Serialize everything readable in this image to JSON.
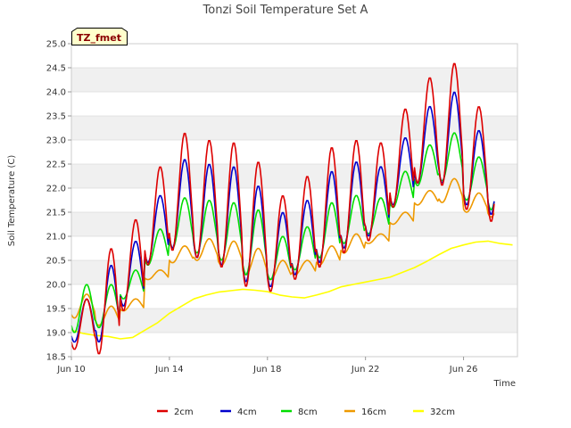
{
  "chart_data": {
    "type": "line",
    "title": "Tonzi Soil Temperature Set A",
    "xlabel": "Time",
    "ylabel": "Soil Temperature (C)",
    "tag_label": "TZ_fmet",
    "ylim": [
      18.5,
      25.0
    ],
    "yticks": [
      18.5,
      19.0,
      19.5,
      20.0,
      20.5,
      21.0,
      21.5,
      22.0,
      22.5,
      23.0,
      23.5,
      24.0,
      24.5,
      25.0
    ],
    "ytick_labels": [
      "18.5",
      "19.0",
      "19.5",
      "20.0",
      "20.5",
      "21.0",
      "21.5",
      "22.0",
      "22.5",
      "23.0",
      "23.5",
      "24.0",
      "24.5",
      "25.0"
    ],
    "xlim": [
      10,
      28.2
    ],
    "xticks": [
      10,
      14,
      18,
      22,
      26
    ],
    "xtick_labels": [
      "Jun 10",
      "Jun 14",
      "Jun 18",
      "Jun 22",
      "Jun 26"
    ],
    "grid": "horizontal bands",
    "legend_position": "bottom",
    "days": [
      "Jun 10",
      "Jun 11",
      "Jun 12",
      "Jun 13",
      "Jun 14",
      "Jun 15",
      "Jun 16",
      "Jun 17",
      "Jun 18",
      "Jun 19",
      "Jun 20",
      "Jun 21",
      "Jun 22",
      "Jun 23",
      "Jun 24",
      "Jun 25",
      "Jun 26",
      "Jun 27"
    ],
    "series": [
      {
        "name": "2cm",
        "color": "#dd0000",
        "kind": "daily",
        "daily_max": [
          19.7,
          20.75,
          21.35,
          22.45,
          23.15,
          23.0,
          22.95,
          22.55,
          21.85,
          22.25,
          22.85,
          23.0,
          22.95,
          23.65,
          24.3,
          24.6,
          23.7,
          23.85
        ],
        "daily_min": [
          18.65,
          18.55,
          19.45,
          20.4,
          20.7,
          20.55,
          20.35,
          19.95,
          19.85,
          20.1,
          20.35,
          20.65,
          20.9,
          21.6,
          22.1,
          22.05,
          21.55,
          21.3
        ]
      },
      {
        "name": "4cm",
        "color": "#0000cc",
        "kind": "daily",
        "daily_max": [
          19.7,
          20.4,
          20.9,
          21.85,
          22.6,
          22.5,
          22.45,
          22.05,
          21.5,
          21.75,
          22.35,
          22.55,
          22.45,
          23.05,
          23.7,
          24.0,
          23.2,
          23.35
        ],
        "daily_min": [
          18.8,
          18.8,
          19.55,
          20.45,
          20.75,
          20.55,
          20.4,
          20.05,
          19.95,
          20.2,
          20.45,
          20.75,
          21.0,
          21.65,
          22.1,
          22.1,
          21.65,
          21.45
        ]
      },
      {
        "name": "8cm",
        "color": "#00dd00",
        "kind": "daily",
        "daily_max": [
          20.0,
          20.0,
          20.3,
          21.15,
          21.8,
          21.75,
          21.7,
          21.55,
          21.0,
          21.2,
          21.7,
          21.85,
          21.8,
          22.35,
          22.9,
          23.15,
          22.65,
          22.7
        ],
        "daily_min": [
          19.0,
          19.1,
          19.7,
          20.4,
          20.75,
          20.65,
          20.5,
          20.2,
          20.1,
          20.3,
          20.55,
          20.85,
          21.05,
          21.6,
          22.05,
          22.15,
          21.75,
          21.55
        ]
      },
      {
        "name": "16cm",
        "color": "#ee9900",
        "kind": "daily",
        "daily_max": [
          19.8,
          19.55,
          19.7,
          20.3,
          20.8,
          20.95,
          20.9,
          20.75,
          20.5,
          20.5,
          20.8,
          21.05,
          21.05,
          21.5,
          21.95,
          22.2,
          21.9,
          21.9
        ],
        "daily_min": [
          19.3,
          19.15,
          19.45,
          20.1,
          20.45,
          20.5,
          20.4,
          20.2,
          20.1,
          20.2,
          20.4,
          20.65,
          20.85,
          21.25,
          21.65,
          21.7,
          21.5,
          21.4
        ]
      },
      {
        "name": "32cm",
        "color": "#ffff00",
        "kind": "smooth",
        "x": [
          10.0,
          10.5,
          11.0,
          11.5,
          12.0,
          12.5,
          13.0,
          13.5,
          14.0,
          14.5,
          15.0,
          15.5,
          16.0,
          16.5,
          17.0,
          17.5,
          18.0,
          18.5,
          19.0,
          19.5,
          20.0,
          20.5,
          21.0,
          21.5,
          22.0,
          22.5,
          23.0,
          23.5,
          24.0,
          24.5,
          25.0,
          25.5,
          26.0,
          26.5,
          27.0,
          27.5,
          28.0
        ],
        "values": [
          19.05,
          18.98,
          18.94,
          18.92,
          18.87,
          18.9,
          19.05,
          19.2,
          19.4,
          19.55,
          19.7,
          19.78,
          19.84,
          19.87,
          19.9,
          19.88,
          19.85,
          19.78,
          19.74,
          19.72,
          19.78,
          19.85,
          19.95,
          20.0,
          20.05,
          20.1,
          20.15,
          20.25,
          20.35,
          20.48,
          20.62,
          20.75,
          20.82,
          20.88,
          20.9,
          20.85,
          20.82
        ]
      }
    ]
  }
}
